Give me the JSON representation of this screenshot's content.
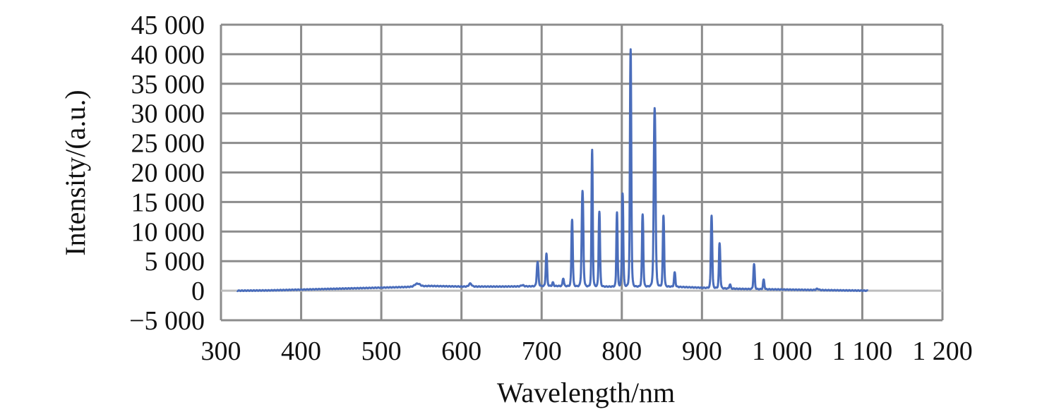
{
  "chart_data": {
    "type": "line",
    "title": "",
    "xlabel": "Wavelength/nm",
    "ylabel": "Intensity/(a.u.)",
    "xlim": [
      300,
      1200
    ],
    "ylim": [
      -5000,
      45000
    ],
    "x_ticks": [
      300,
      400,
      500,
      600,
      700,
      800,
      900,
      1000,
      1100,
      1200
    ],
    "x_tick_labels": [
      "300",
      "400",
      "500",
      "600",
      "700",
      "800",
      "900",
      "1 000",
      "1 100",
      "1 200"
    ],
    "y_ticks": [
      -5000,
      0,
      5000,
      10000,
      15000,
      20000,
      25000,
      30000,
      35000,
      40000,
      45000
    ],
    "y_tick_labels": [
      "−5 000",
      "0",
      "5 000",
      "10 000",
      "15 000",
      "20 000",
      "25 000",
      "30 000",
      "35 000",
      "40 000",
      "45 000"
    ],
    "grid": true,
    "legend": "none",
    "series_color": "#4a6dbb",
    "x_range": [
      320,
      1107
    ],
    "baseline": [
      [
        320,
        0
      ],
      [
        360,
        50
      ],
      [
        420,
        250
      ],
      [
        480,
        450
      ],
      [
        540,
        650
      ],
      [
        560,
        800
      ],
      [
        600,
        700
      ],
      [
        650,
        700
      ],
      [
        690,
        750
      ],
      [
        720,
        800
      ],
      [
        760,
        700
      ],
      [
        800,
        700
      ],
      [
        860,
        700
      ],
      [
        900,
        500
      ],
      [
        950,
        300
      ],
      [
        1000,
        200
      ],
      [
        1050,
        100
      ],
      [
        1107,
        0
      ]
    ],
    "peaks": [
      {
        "x": 545,
        "y": 500,
        "w": 4
      },
      {
        "x": 611,
        "y": 500,
        "w": 2
      },
      {
        "x": 676,
        "y": 200,
        "w": 2
      },
      {
        "x": 695,
        "y": 4100,
        "w": 1.2
      },
      {
        "x": 706,
        "y": 5500,
        "w": 1.0
      },
      {
        "x": 714,
        "y": 600,
        "w": 1.0
      },
      {
        "x": 727,
        "y": 1300,
        "w": 1.0
      },
      {
        "x": 738,
        "y": 11300,
        "w": 1.0
      },
      {
        "x": 751,
        "y": 16100,
        "w": 1.2
      },
      {
        "x": 763,
        "y": 23100,
        "w": 0.9
      },
      {
        "x": 772,
        "y": 12700,
        "w": 1.0
      },
      {
        "x": 794,
        "y": 12600,
        "w": 0.9
      },
      {
        "x": 801,
        "y": 15800,
        "w": 1.0
      },
      {
        "x": 811,
        "y": 40100,
        "w": 1.0
      },
      {
        "x": 826,
        "y": 12200,
        "w": 1.0
      },
      {
        "x": 841,
        "y": 30200,
        "w": 1.3
      },
      {
        "x": 852,
        "y": 12000,
        "w": 1.0
      },
      {
        "x": 866,
        "y": 2400,
        "w": 1.0
      },
      {
        "x": 912,
        "y": 12300,
        "w": 1.0
      },
      {
        "x": 922,
        "y": 7600,
        "w": 1.0
      },
      {
        "x": 935,
        "y": 700,
        "w": 1.0
      },
      {
        "x": 965,
        "y": 4200,
        "w": 1.0
      },
      {
        "x": 977,
        "y": 1600,
        "w": 1.0
      },
      {
        "x": 1044,
        "y": 200,
        "w": 2
      }
    ]
  }
}
